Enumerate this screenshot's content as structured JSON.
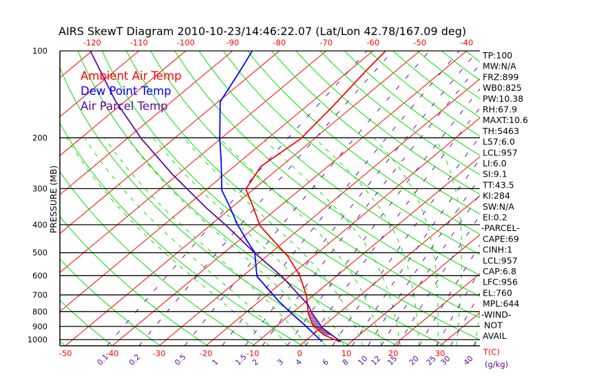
{
  "chart_data": {
    "type": "line",
    "subtype": "skew-t log-p",
    "title": "AIRS SkewT Diagram 2010-10-23/14:46:22.07 (Lat/Lon 42.78/167.09 deg)",
    "ylabel": "PRESSURE (MB)",
    "xlabel": "T(C)",
    "mixing_ratio_unit": "(g/kg)",
    "ylim": [
      1050,
      100
    ],
    "pressure_ticks": [
      100,
      200,
      300,
      400,
      500,
      600,
      700,
      800,
      900,
      1000
    ],
    "top_temp_ticks": [
      -120,
      -110,
      -100,
      -90,
      -80,
      -70,
      -60,
      -50,
      -40
    ],
    "bottom_temp_ticks": [
      -50,
      -40,
      -30,
      -20,
      -10,
      0,
      10,
      20,
      30
    ],
    "mixing_ratio_ticks": [
      "0.1",
      "0.2",
      "0.5",
      "1",
      "1.5",
      "2",
      "3",
      "4",
      "6",
      "8",
      "10",
      "12",
      "15",
      "20",
      "25",
      "30",
      "40"
    ],
    "legend": [
      "Ambient Air Temp",
      "Dew Point Temp",
      "Air Parcel Temp"
    ],
    "legend_placement": "top-left",
    "series": [
      {
        "name": "Ambient Air Temp",
        "color": "#ff0000",
        "p": [
          100,
          117,
          157,
          202,
          251,
          301,
          345,
          403,
          462,
          515,
          597,
          704,
          817,
          892,
          962,
          1017
        ],
        "t": [
          -57.3,
          -56.4,
          -54.3,
          -52.9,
          -54.3,
          -51.7,
          -45.8,
          -39.3,
          -31.6,
          -25.4,
          -18.2,
          -11.4,
          -6.2,
          -2.4,
          2.3,
          7.5
        ]
      },
      {
        "name": "Dew Point Temp",
        "color": "#0000ff",
        "p": [
          100,
          117,
          150,
          202,
          239,
          304,
          345,
          400,
          459,
          498,
          604,
          649,
          736,
          817,
          892,
          1017
        ],
        "t": [
          -85.8,
          -83.3,
          -79.6,
          -70.1,
          -64.4,
          -56.5,
          -50.8,
          -44.3,
          -37.7,
          -33.6,
          -26.9,
          -22.9,
          -15.9,
          -9.6,
          -4.1,
          3.8
        ]
      },
      {
        "name": "Air Parcel Temp",
        "color": "#5a0a96",
        "p": [
          100,
          149,
          202,
          267,
          301,
          351,
          400,
          501,
          607,
          756,
          808,
          911,
          1017
        ],
        "t": [
          -120.4,
          -102.2,
          -86.8,
          -71.3,
          -64.2,
          -55.1,
          -46.9,
          -33.4,
          -21.3,
          -8.8,
          -5.8,
          0.3,
          7.8
        ]
      }
    ],
    "cape_hatch_range": [
      800,
      965
    ],
    "grid": true
  },
  "indices": [
    "TP:100",
    "MW:N/A",
    "FRZ:899",
    "WB0:825",
    "PW:10.38",
    "RH:67.9",
    "MAXT:10.6",
    "TH:5463",
    "L57:6.0",
    "LCL:957",
    "LI:6.0",
    "SI:9.1",
    "TT:43.5",
    "KI:284",
    "SW:N/A",
    "EI:0.2",
    "-PARCEL-",
    "CAPE:69",
    "CINH:1",
    "LCL:957",
    "CAP:6.8",
    "LFC:956",
    "EL:760",
    "MPL:644",
    "-WIND-",
    "NOT",
    "AVAIL"
  ],
  "colors": {
    "isotherm": "#ff0000",
    "dry_adiabat": "#00e000",
    "moist_adiabat": "#00e000",
    "mixing_ratio": "#5a0a96",
    "temp": "#ff0000",
    "dewpoint": "#0000ff",
    "parcel": "#5a0a96"
  }
}
